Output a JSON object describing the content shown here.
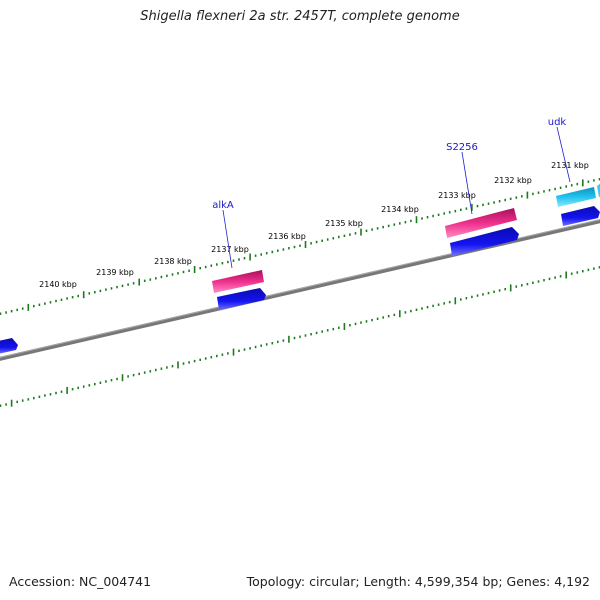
{
  "title": "Shigella flexneri 2a str. 2457T, complete genome",
  "scale": {
    "labels": [
      "2131 kbp",
      "2132 kbp",
      "2133 kbp",
      "2134 kbp",
      "2135 kbp",
      "2136 kbp",
      "2137 kbp",
      "2138 kbp",
      "2139 kbp",
      "2140 kbp"
    ]
  },
  "genes": [
    {
      "name": "udk"
    },
    {
      "name": "S2256"
    },
    {
      "name": "alkA"
    }
  ],
  "colors": {
    "backbone": "#7a7a7a",
    "ticks": "#1f7a1f",
    "forward_pink": "#ee2f8c",
    "cds_blue": "#1010e8",
    "cds_cyan": "#18b8e0",
    "label_blue": "#1a1acc"
  },
  "footer": {
    "accession": "Accession: NC_004741",
    "summary": "Topology: circular; Length: 4,599,354 bp; Genes: 4,192"
  }
}
